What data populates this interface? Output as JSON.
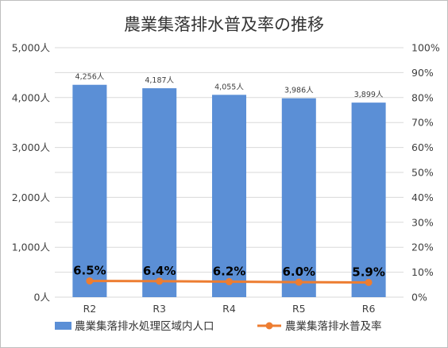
{
  "chart_data": {
    "type": "bar+line",
    "title": "農業集落排水普及率の推移",
    "categories": [
      "R2",
      "R3",
      "R4",
      "R5",
      "R6"
    ],
    "y_left": {
      "ylim": [
        0,
        5000
      ],
      "ticks": [
        0,
        1000,
        2000,
        3000,
        4000,
        5000
      ],
      "tick_labels": [
        "0人",
        "1,000人",
        "2,000人",
        "3,000人",
        "4,000人",
        "5,000人"
      ]
    },
    "y_right": {
      "ylim": [
        0,
        100
      ],
      "ticks": [
        0,
        10,
        20,
        30,
        40,
        50,
        60,
        70,
        80,
        90,
        100
      ],
      "tick_labels": [
        "0%",
        "10%",
        "20%",
        "30%",
        "40%",
        "50%",
        "60%",
        "70%",
        "80%",
        "90%",
        "100%"
      ]
    },
    "grid": true,
    "legend_position": "bottom",
    "series": [
      {
        "name": "農業集落排水処理区域内人口",
        "type": "bar",
        "axis": "left",
        "color": "#5b8fd6",
        "values": [
          4256,
          4187,
          4055,
          3986,
          3899
        ],
        "labels": [
          "4,256人",
          "4,187人",
          "4,055人",
          "3,986人",
          "3,899人"
        ]
      },
      {
        "name": "農業集落排水普及率",
        "type": "line",
        "axis": "right",
        "color": "#ed7d31",
        "values": [
          6.5,
          6.4,
          6.2,
          6.0,
          5.9
        ],
        "labels": [
          "6.5%",
          "6.4%",
          "6.2%",
          "6.0%",
          "5.9%"
        ]
      }
    ]
  }
}
